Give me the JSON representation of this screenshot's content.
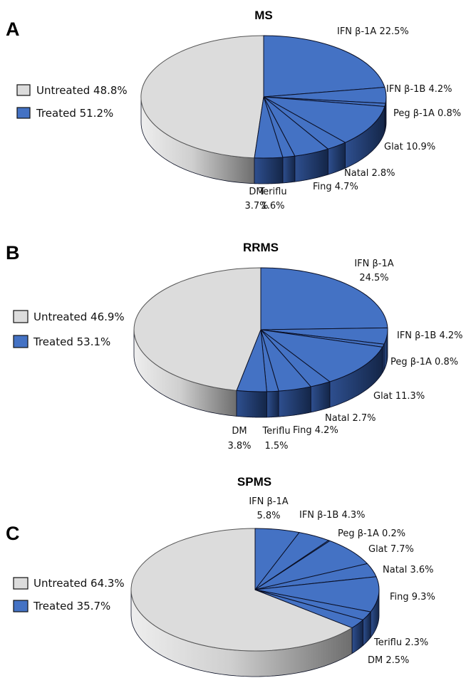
{
  "colors": {
    "untreated": "#dcdcdc",
    "untreated_dark": "#7a7a7a",
    "treated": "#4472c4",
    "treated_dark": "#1f3864",
    "edge": "#0a0f24"
  },
  "chart_data": [
    {
      "type": "pie",
      "panel": "A",
      "title": "MS",
      "legend": [
        {
          "key": "untreated",
          "label": "Untreated 48.8%"
        },
        {
          "key": "treated",
          "label": "Treated 51.2%"
        }
      ],
      "untreated": 48.8,
      "slices": [
        {
          "name": "IFN β-1A",
          "value": 22.5,
          "label": [
            "IFN β-1A 22.5%"
          ]
        },
        {
          "name": "IFN β-1B",
          "value": 4.2,
          "label": [
            "IFN β-1B 4.2%"
          ]
        },
        {
          "name": "Peg β-1A",
          "value": 0.8,
          "label": [
            "Peg β-1A 0.8%"
          ]
        },
        {
          "name": "Glat",
          "value": 10.9,
          "label": [
            "Glat 10.9%"
          ]
        },
        {
          "name": "Natal",
          "value": 2.8,
          "label": [
            "Natal 2.8%"
          ]
        },
        {
          "name": "Fing",
          "value": 4.7,
          "label": [
            "Fing 4.7%"
          ]
        },
        {
          "name": "Teriflu",
          "value": 1.6,
          "label": [
            "Teriflu",
            "1.6%"
          ]
        },
        {
          "name": "DM",
          "value": 3.7,
          "label": [
            "DM",
            "3.7%"
          ]
        }
      ]
    },
    {
      "type": "pie",
      "panel": "B",
      "title": "RRMS",
      "legend": [
        {
          "key": "untreated",
          "label": "Untreated 46.9%"
        },
        {
          "key": "treated",
          "label": "Treated 53.1%"
        }
      ],
      "untreated": 46.9,
      "slices": [
        {
          "name": "IFN β-1A",
          "value": 24.5,
          "label": [
            "IFN β-1A",
            "24.5%"
          ]
        },
        {
          "name": "IFN β-1B",
          "value": 4.2,
          "label": [
            "IFN β-1B 4.2%"
          ]
        },
        {
          "name": "Peg β-1A",
          "value": 0.8,
          "label": [
            "Peg β-1A 0.8%"
          ]
        },
        {
          "name": "Glat",
          "value": 11.3,
          "label": [
            "Glat 11.3%"
          ]
        },
        {
          "name": "Natal",
          "value": 2.7,
          "label": [
            "Natal 2.7%"
          ]
        },
        {
          "name": "Fing",
          "value": 4.2,
          "label": [
            "Fing 4.2%"
          ]
        },
        {
          "name": "Teriflu",
          "value": 1.5,
          "label": [
            "Teriflu",
            "1.5%"
          ]
        },
        {
          "name": "DM",
          "value": 3.8,
          "label": [
            "DM",
            "3.8%"
          ]
        }
      ]
    },
    {
      "type": "pie",
      "panel": "C",
      "title": "SPMS",
      "legend": [
        {
          "key": "untreated",
          "label": "Untreated 64.3%"
        },
        {
          "key": "treated",
          "label": "Treated 35.7%"
        }
      ],
      "untreated": 64.3,
      "slices": [
        {
          "name": "IFN β-1A",
          "value": 5.8,
          "label": [
            "IFN β-1A",
            "5.8%"
          ]
        },
        {
          "name": "IFN β-1B",
          "value": 4.3,
          "label": [
            "IFN β-1B 4.3%"
          ]
        },
        {
          "name": "Peg β-1A",
          "value": 0.2,
          "label": [
            "Peg β-1A 0.2%"
          ]
        },
        {
          "name": "Glat",
          "value": 7.7,
          "label": [
            "Glat 7.7%"
          ]
        },
        {
          "name": "Natal",
          "value": 3.6,
          "label": [
            "Natal 3.6%"
          ]
        },
        {
          "name": "Fing",
          "value": 9.3,
          "label": [
            "Fing 9.3%"
          ]
        },
        {
          "name": "Teriflu",
          "value": 2.3,
          "label": [
            "Teriflu 2.3%"
          ]
        },
        {
          "name": "DM",
          "value": 2.5,
          "label": [
            "DM 2.5%"
          ]
        }
      ]
    }
  ]
}
